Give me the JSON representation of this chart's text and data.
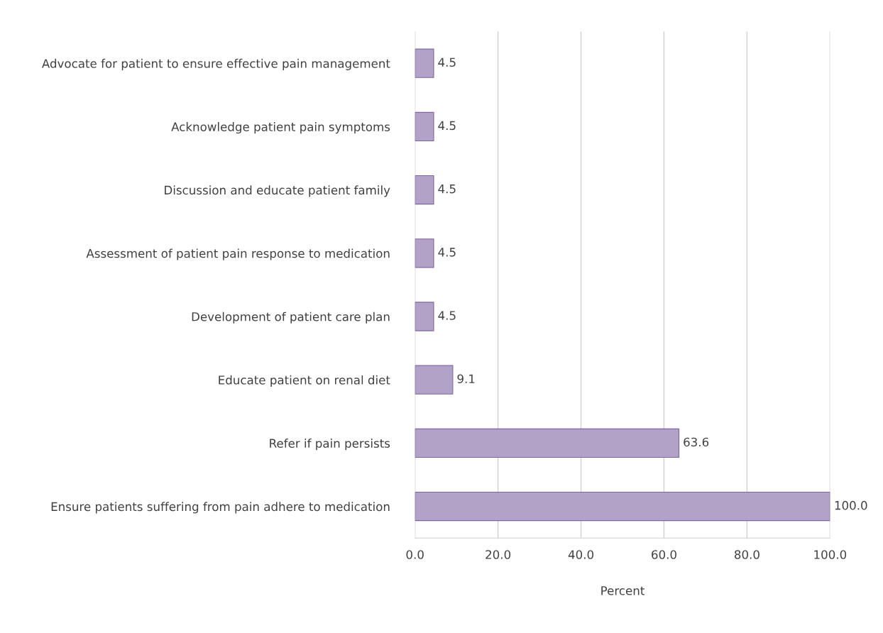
{
  "chart_data": {
    "type": "bar",
    "orientation": "horizontal",
    "xlabel": "Percent",
    "categories": [
      "Advocate for patient to ensure effective pain management",
      "Acknowledge patient pain symptoms",
      "Discussion and educate patient family",
      "Assessment of patient pain response to medication",
      "Development of patient care plan",
      "Educate patient on renal diet",
      "Refer if pain persists",
      "Ensure patients suffering from pain adhere to medication"
    ],
    "values": [
      4.5,
      4.5,
      4.5,
      4.5,
      4.5,
      9.1,
      63.6,
      100.0
    ],
    "value_labels": [
      "4.5",
      "4.5",
      "4.5",
      "4.5",
      "4.5",
      "9.1",
      "63.6",
      "100.0"
    ],
    "color": "#b3a2c7",
    "xlim": [
      0,
      100
    ],
    "xticks": [
      {
        "value": 0,
        "label": "0.0"
      },
      {
        "value": 20,
        "label": "20.0"
      },
      {
        "value": 40,
        "label": "40.0"
      },
      {
        "value": 60,
        "label": "60.0"
      },
      {
        "value": 80,
        "label": "80.0"
      },
      {
        "value": 100,
        "label": "100.0"
      }
    ],
    "grid": "x"
  }
}
